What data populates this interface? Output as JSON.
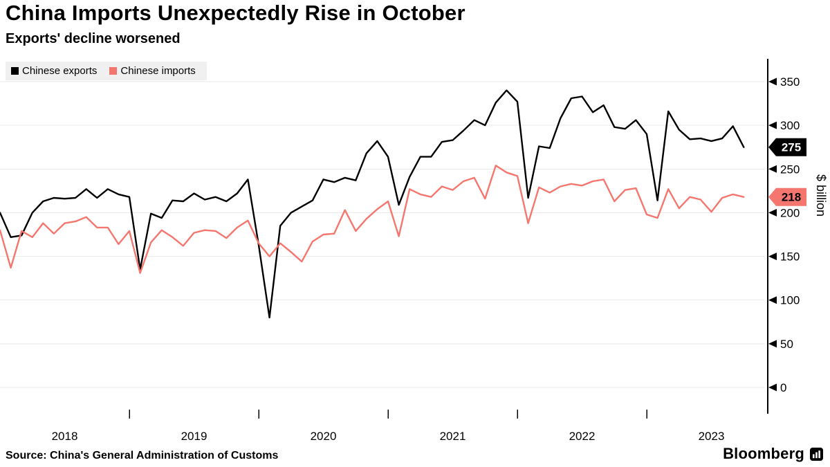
{
  "header": {
    "title": "China Imports Unexpectedly Rise in October",
    "subtitle": "Exports' decline worsened"
  },
  "legend": [
    {
      "label": "Chinese exports",
      "color": "#000000"
    },
    {
      "label": "Chinese imports",
      "color": "#f4766e"
    }
  ],
  "footer": {
    "source": "Source: China's General Administration of Customs",
    "brand": "Bloomberg"
  },
  "colors": {
    "exports": "#000000",
    "imports": "#f4766e",
    "grid": "#e9e9e9",
    "legend_background": "#f0f0f0"
  },
  "chart_data": {
    "type": "line",
    "title": "China Imports Unexpectedly Rise in October",
    "subtitle": "Exports' decline worsened",
    "ylabel": "$ billion",
    "ylim": [
      0,
      370
    ],
    "yticks": [
      0,
      50,
      100,
      150,
      200,
      250,
      300,
      350
    ],
    "y_axis_side": "right",
    "grid": true,
    "legend_position": "top-left",
    "x_start": "2018-01",
    "x_end": "2023-10",
    "frequency": "monthly",
    "x_years": [
      "2018",
      "2019",
      "2020",
      "2021",
      "2022",
      "2023"
    ],
    "series": [
      {
        "name": "Chinese exports",
        "color": "#000000",
        "end_label": "275",
        "end_label_text_color": "#ffffff",
        "values": [
          200,
          172,
          174,
          200,
          213,
          217,
          216,
          217,
          227,
          217,
          227,
          221,
          218,
          135,
          199,
          194,
          214,
          213,
          222,
          215,
          218,
          213,
          222,
          238,
          163,
          80,
          185,
          200,
          207,
          214,
          238,
          235,
          240,
          237,
          268,
          282,
          264,
          209,
          241,
          264,
          264,
          281,
          283,
          294,
          306,
          300,
          326,
          340,
          327,
          217,
          276,
          274,
          308,
          331,
          333,
          315,
          323,
          298,
          296,
          306,
          290,
          214,
          316,
          295,
          284,
          285,
          282,
          285,
          299,
          275
        ]
      },
      {
        "name": "Chinese imports",
        "color": "#f4766e",
        "end_label": "218",
        "end_label_text_color": "#000000",
        "values": [
          180,
          137,
          179,
          172,
          188,
          176,
          188,
          190,
          195,
          183,
          183,
          164,
          179,
          131,
          166,
          180,
          172,
          162,
          177,
          180,
          179,
          171,
          183,
          191,
          165,
          150,
          165,
          155,
          144,
          167,
          175,
          176,
          203,
          179,
          193,
          204,
          213,
          173,
          227,
          221,
          218,
          230,
          226,
          236,
          240,
          216,
          254,
          246,
          242,
          188,
          229,
          223,
          230,
          233,
          231,
          236,
          238,
          213,
          226,
          228,
          198,
          194,
          227,
          205,
          218,
          215,
          201,
          217,
          221,
          218
        ]
      }
    ]
  }
}
